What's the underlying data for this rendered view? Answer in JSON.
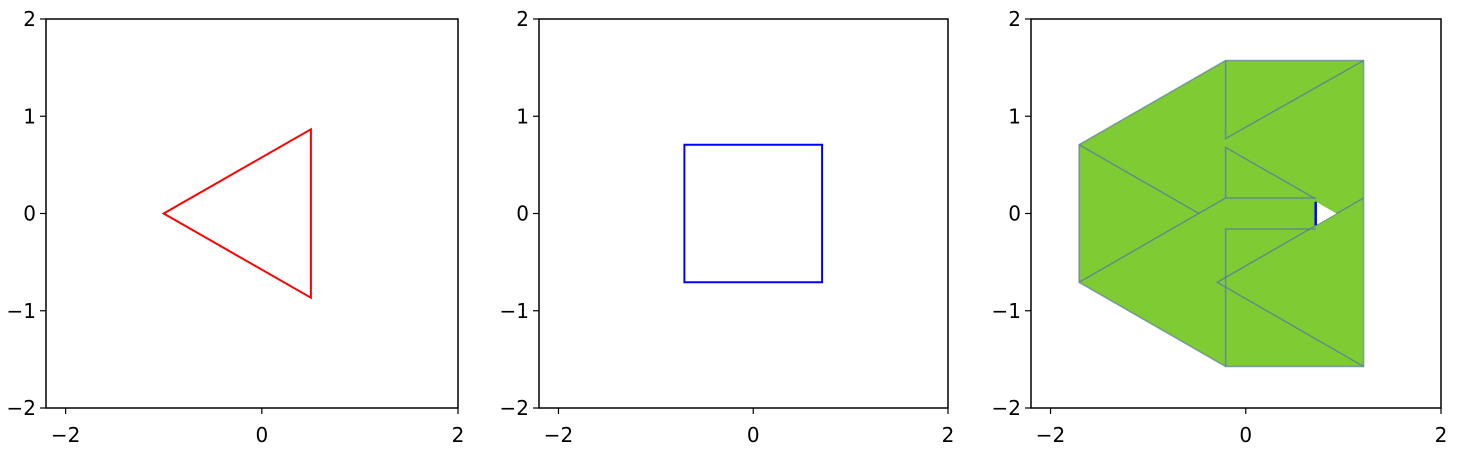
{
  "chart_data": [
    {
      "type": "line",
      "title": "",
      "xlim": [
        -2.2,
        2
      ],
      "ylim": [
        -2,
        2
      ],
      "xticks": [
        -2,
        0,
        2
      ],
      "yticks": [
        -2,
        -1,
        0,
        1,
        2
      ],
      "xtick_labels": [
        "−2",
        "0",
        "2"
      ],
      "ytick_labels": [
        "−2",
        "−1",
        "0",
        "1",
        "2"
      ],
      "grid": false,
      "series": [
        {
          "color": "#ff0000",
          "closed": true,
          "points": [
            [
              -1,
              0
            ],
            [
              0.5,
              0.866
            ],
            [
              0.5,
              -0.866
            ]
          ]
        }
      ]
    },
    {
      "type": "line",
      "title": "",
      "xlim": [
        -2.2,
        2
      ],
      "ylim": [
        -2,
        2
      ],
      "xticks": [
        -2,
        0,
        2
      ],
      "yticks": [
        -2,
        -1,
        0,
        1,
        2
      ],
      "xtick_labels": [
        "−2",
        "0",
        "2"
      ],
      "ytick_labels": [
        "−2",
        "−1",
        "0",
        "1",
        "2"
      ],
      "grid": false,
      "series": [
        {
          "color": "#0000ff",
          "closed": true,
          "points": [
            [
              -0.707,
              0.707
            ],
            [
              0.707,
              0.707
            ],
            [
              0.707,
              -0.707
            ],
            [
              -0.707,
              -0.707
            ]
          ]
        }
      ]
    },
    {
      "type": "area",
      "title": "",
      "xlim": [
        -2.2,
        2
      ],
      "ylim": [
        -2,
        2
      ],
      "xticks": [
        -2,
        0,
        2
      ],
      "yticks": [
        -2,
        -1,
        0,
        1,
        2
      ],
      "xtick_labels": [
        "−2",
        "0",
        "2"
      ],
      "ytick_labels": [
        "−2",
        "−1",
        "0",
        "1",
        "2"
      ],
      "grid": false,
      "fill_color": "#7fcb33",
      "edge_color": "#5a7f9a",
      "outline": [
        [
          -1.707,
          0.707
        ],
        [
          -0.207,
          1.573
        ],
        [
          1.207,
          1.573
        ],
        [
          1.207,
          -1.573
        ],
        [
          -0.207,
          -1.573
        ],
        [
          -1.707,
          -0.707
        ]
      ],
      "inner_edges": [
        [
          [
            -1.707,
            0.707
          ],
          [
            -0.48,
            0.0
          ]
        ],
        [
          [
            -1.707,
            -0.707
          ],
          [
            -0.207,
            0.159
          ],
          [
            0.716,
            0.159
          ]
        ],
        [
          [
            -0.207,
            1.573
          ],
          [
            -0.207,
            0.77
          ],
          [
            1.207,
            1.573
          ]
        ],
        [
          [
            -0.207,
            0.159
          ],
          [
            -0.207,
            0.68
          ],
          [
            0.716,
            0.15
          ]
        ],
        [
          [
            0.716,
            -0.159
          ],
          [
            -0.207,
            -0.159
          ],
          [
            -0.207,
            -1.573
          ]
        ],
        [
          [
            1.207,
            0.159
          ],
          [
            -0.293,
            -0.707
          ],
          [
            1.207,
            -1.573
          ]
        ]
      ],
      "hole": [
        [
          0.72,
          0.12
        ],
        [
          0.72,
          -0.12
        ],
        [
          0.93,
          0.0
        ]
      ],
      "segment": {
        "color": "#0000ff",
        "points": [
          [
            0.716,
            0.12
          ],
          [
            0.716,
            -0.12
          ]
        ]
      }
    }
  ]
}
